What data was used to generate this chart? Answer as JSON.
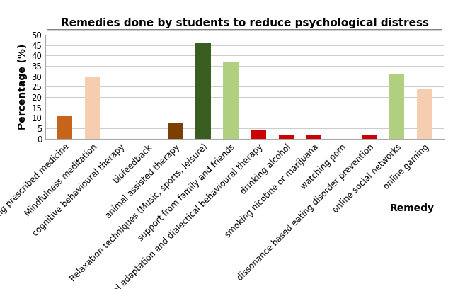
{
  "title": "Remedies done by students to reduce psychological distress",
  "xlabel": "Remedy",
  "ylabel": "Percentage (%)",
  "categories": [
    "Taking prescribed medicine",
    "Mindfulness meditation",
    "cognitive behavioural therapy",
    "biofeedback",
    "animal assisted therapy",
    "Relaxation techniques (Music, sports, leisure)",
    "support from family and friends",
    "cultural adaptation and dialectical behavioural therapy",
    "drinking alcohol",
    "smoking nicotine or marijuana",
    "watching porn",
    "dissonance based eating disorder prevention",
    "online social networks",
    "online gaming"
  ],
  "values": [
    11,
    30,
    0,
    0,
    7.5,
    46,
    37,
    4,
    2,
    2,
    0,
    2,
    31,
    24
  ],
  "colors": [
    "#c8631c",
    "#f5cdb0",
    "#ffffff",
    "#ffffff",
    "#7b3f00",
    "#3a5e1f",
    "#b0d080",
    "#cc0000",
    "#cc0000",
    "#cc0000",
    "#ffffff",
    "#cc0000",
    "#b0d080",
    "#f5cdb0"
  ],
  "ylim": [
    0,
    50
  ],
  "yticks": [
    0,
    5,
    10,
    15,
    20,
    25,
    30,
    35,
    40,
    45,
    50
  ],
  "background_color": "#ffffff",
  "title_fontsize": 11,
  "axis_label_fontsize": 10,
  "tick_fontsize": 8.5,
  "bar_width": 0.55
}
